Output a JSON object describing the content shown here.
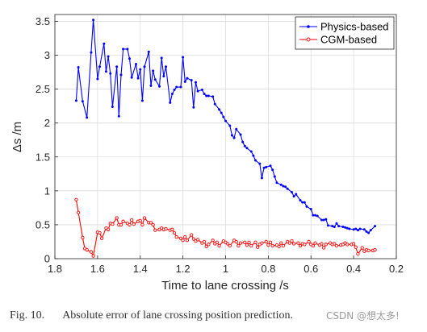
{
  "chart_data": {
    "type": "line",
    "xlabel": "Time to lane crossing /s",
    "ylabel": "Δs /m",
    "xlim": [
      1.8,
      0.2
    ],
    "ylim": [
      0,
      3.6
    ],
    "x_reversed": true,
    "grid": true,
    "legend_position": "top-right",
    "xticks": [
      1.8,
      1.6,
      1.4,
      1.2,
      1,
      0.8,
      0.6,
      0.4,
      0.2
    ],
    "xtick_labels": [
      "1.8",
      "1.6",
      "1.4",
      "1.2",
      "1",
      "0.8",
      "0.6",
      "0.4",
      "0.2"
    ],
    "yticks": [
      0,
      0.5,
      1,
      1.5,
      2,
      2.5,
      3,
      3.5
    ],
    "ytick_labels": [
      "0",
      "0.5",
      "1",
      "1.5",
      "2",
      "2.5",
      "3",
      "3.5"
    ],
    "series": [
      {
        "name": "Physics-based",
        "color": "#0000ff",
        "marker": "dot",
        "x": [
          1.7,
          1.69,
          1.67,
          1.65,
          1.63,
          1.62,
          1.6,
          1.59,
          1.57,
          1.56,
          1.55,
          1.54,
          1.53,
          1.51,
          1.5,
          1.49,
          1.48,
          1.46,
          1.45,
          1.44,
          1.42,
          1.41,
          1.4,
          1.39,
          1.38,
          1.36,
          1.35,
          1.34,
          1.33,
          1.31,
          1.3,
          1.29,
          1.28,
          1.26,
          1.25,
          1.24,
          1.23,
          1.21,
          1.2,
          1.19,
          1.18,
          1.16,
          1.15,
          1.14,
          1.13,
          1.11,
          1.1,
          1.09,
          1.08,
          1.06,
          1.05,
          1.03,
          1.02,
          1.01,
          1.0,
          0.98,
          0.97,
          0.96,
          0.95,
          0.93,
          0.92,
          0.91,
          0.9,
          0.88,
          0.87,
          0.86,
          0.84,
          0.83,
          0.82,
          0.81,
          0.79,
          0.78,
          0.77,
          0.76,
          0.74,
          0.73,
          0.72,
          0.71,
          0.69,
          0.68,
          0.67,
          0.65,
          0.64,
          0.63,
          0.62,
          0.6,
          0.59,
          0.58,
          0.57,
          0.55,
          0.54,
          0.53,
          0.52,
          0.5,
          0.49,
          0.48,
          0.47,
          0.45,
          0.44,
          0.43,
          0.42,
          0.4,
          0.39,
          0.38,
          0.37,
          0.35,
          0.34,
          0.33,
          0.32,
          0.3
        ],
        "y": [
          2.33,
          2.82,
          2.32,
          2.08,
          3.04,
          3.52,
          2.65,
          2.83,
          3.17,
          2.76,
          2.98,
          2.73,
          2.24,
          2.83,
          2.1,
          2.71,
          3.09,
          3.09,
          2.95,
          2.67,
          2.87,
          2.66,
          2.79,
          2.33,
          2.83,
          3.05,
          2.55,
          2.77,
          2.64,
          2.54,
          2.96,
          2.69,
          2.83,
          2.3,
          2.43,
          2.49,
          2.53,
          2.53,
          2.97,
          2.61,
          2.66,
          2.63,
          2.23,
          2.6,
          2.47,
          2.49,
          2.43,
          2.4,
          2.4,
          2.39,
          2.28,
          2.2,
          2.15,
          2.09,
          2.03,
          1.96,
          1.82,
          1.78,
          1.91,
          1.83,
          1.72,
          1.66,
          1.63,
          1.58,
          1.52,
          1.45,
          1.4,
          1.19,
          1.34,
          1.35,
          1.37,
          1.31,
          1.21,
          1.12,
          1.09,
          1.07,
          1.06,
          1.03,
          0.98,
          0.92,
          0.95,
          0.86,
          0.83,
          0.83,
          0.77,
          0.73,
          0.64,
          0.64,
          0.63,
          0.57,
          0.57,
          0.58,
          0.49,
          0.48,
          0.47,
          0.52,
          0.48,
          0.47,
          0.46,
          0.45,
          0.44,
          0.43,
          0.44,
          0.42,
          0.44,
          0.43,
          0.4,
          0.38,
          0.42,
          0.48
        ]
      },
      {
        "name": "CGM-based",
        "color": "#ff0000",
        "marker": "circle",
        "x": [
          1.7,
          1.69,
          1.67,
          1.66,
          1.65,
          1.63,
          1.62,
          1.6,
          1.59,
          1.58,
          1.56,
          1.55,
          1.54,
          1.53,
          1.51,
          1.5,
          1.49,
          1.48,
          1.46,
          1.45,
          1.44,
          1.43,
          1.41,
          1.4,
          1.39,
          1.38,
          1.36,
          1.35,
          1.34,
          1.33,
          1.31,
          1.3,
          1.29,
          1.28,
          1.26,
          1.25,
          1.24,
          1.23,
          1.21,
          1.2,
          1.19,
          1.18,
          1.16,
          1.15,
          1.14,
          1.13,
          1.11,
          1.1,
          1.09,
          1.08,
          1.06,
          1.05,
          1.04,
          1.03,
          1.01,
          1.0,
          0.99,
          0.98,
          0.96,
          0.95,
          0.94,
          0.93,
          0.91,
          0.9,
          0.89,
          0.88,
          0.86,
          0.85,
          0.84,
          0.83,
          0.81,
          0.8,
          0.79,
          0.78,
          0.76,
          0.75,
          0.74,
          0.73,
          0.71,
          0.7,
          0.69,
          0.68,
          0.66,
          0.65,
          0.64,
          0.63,
          0.61,
          0.6,
          0.59,
          0.58,
          0.56,
          0.55,
          0.54,
          0.53,
          0.51,
          0.5,
          0.49,
          0.48,
          0.46,
          0.45,
          0.44,
          0.43,
          0.41,
          0.4,
          0.39,
          0.38,
          0.36,
          0.35,
          0.34,
          0.33,
          0.31,
          0.3
        ],
        "y": [
          0.87,
          0.68,
          0.31,
          0.15,
          0.13,
          0.1,
          0.04,
          0.39,
          0.38,
          0.3,
          0.45,
          0.43,
          0.52,
          0.51,
          0.6,
          0.5,
          0.5,
          0.55,
          0.52,
          0.5,
          0.57,
          0.51,
          0.55,
          0.56,
          0.5,
          0.6,
          0.53,
          0.53,
          0.5,
          0.42,
          0.43,
          0.45,
          0.43,
          0.44,
          0.42,
          0.43,
          0.38,
          0.32,
          0.3,
          0.27,
          0.32,
          0.27,
          0.35,
          0.29,
          0.26,
          0.28,
          0.23,
          0.25,
          0.18,
          0.21,
          0.27,
          0.22,
          0.24,
          0.19,
          0.26,
          0.24,
          0.22,
          0.19,
          0.27,
          0.25,
          0.19,
          0.23,
          0.24,
          0.2,
          0.24,
          0.19,
          0.24,
          0.17,
          0.21,
          0.23,
          0.25,
          0.2,
          0.24,
          0.19,
          0.2,
          0.18,
          0.23,
          0.19,
          0.25,
          0.23,
          0.26,
          0.22,
          0.23,
          0.19,
          0.22,
          0.21,
          0.25,
          0.21,
          0.19,
          0.23,
          0.2,
          0.22,
          0.16,
          0.21,
          0.23,
          0.21,
          0.22,
          0.19,
          0.2,
          0.21,
          0.23,
          0.21,
          0.21,
          0.22,
          0.17,
          0.07,
          0.16,
          0.11,
          0.13,
          0.12,
          0.12,
          0.13
        ]
      }
    ]
  },
  "caption": {
    "fig_label": "Fig. 10.",
    "text": "Absolute error of lane crossing position prediction."
  },
  "watermark": "CSDN @想太多!"
}
